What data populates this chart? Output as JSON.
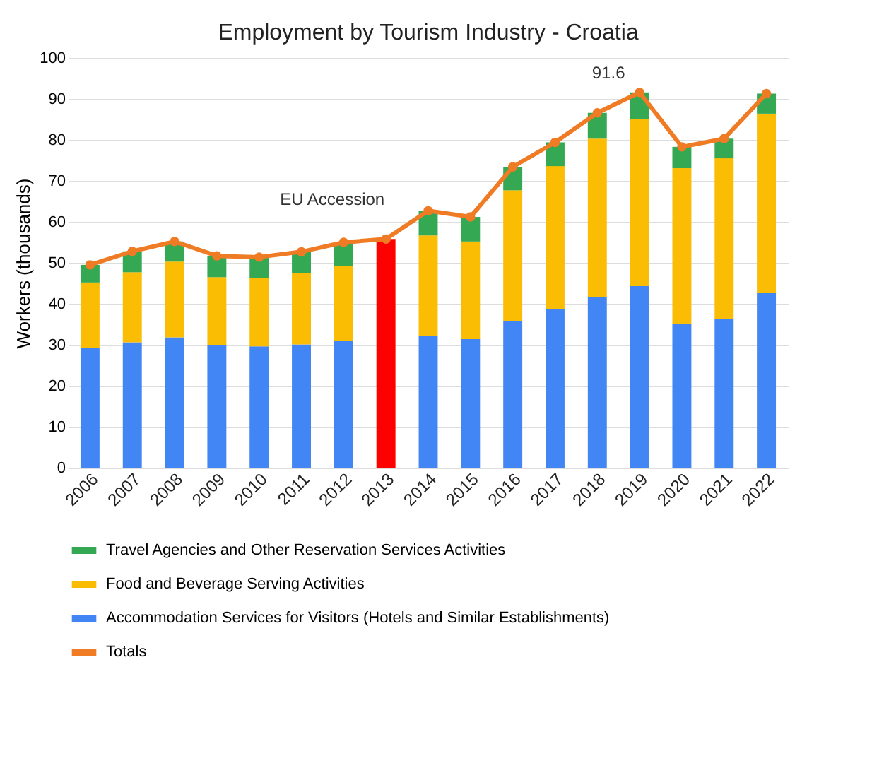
{
  "chart_data": {
    "type": "bar",
    "title": "Employment by Tourism Industry - Croatia",
    "ylabel": "Workers (thousands)",
    "categories": [
      "2006",
      "2007",
      "2008",
      "2009",
      "2010",
      "2011",
      "2012",
      "2013",
      "2014",
      "2015",
      "2016",
      "2017",
      "2018",
      "2019",
      "2020",
      "2021",
      "2022"
    ],
    "stacked": true,
    "series": [
      {
        "name": "Accommodation Services for Visitors (Hotels and Similar Establishments)",
        "color": "#4285f4",
        "values": [
          29.2,
          30.6,
          31.8,
          30.0,
          29.6,
          30.1,
          30.9,
          null,
          32.1,
          31.4,
          35.8,
          38.8,
          41.7,
          44.3,
          35.0,
          36.3,
          42.6
        ]
      },
      {
        "name": "Food and Beverage Serving Activities",
        "color": "#fbbc04",
        "values": [
          16.0,
          17.1,
          18.5,
          16.5,
          16.7,
          17.4,
          18.4,
          null,
          24.6,
          23.8,
          31.9,
          34.8,
          38.6,
          40.7,
          38.1,
          39.2,
          43.8
        ]
      },
      {
        "name": "Travel Agencies and Other Reservation Services Activities",
        "color": "#34a853",
        "values": [
          4.3,
          5.1,
          4.9,
          5.2,
          5.1,
          5.2,
          5.7,
          null,
          6.0,
          6.0,
          5.7,
          5.8,
          6.3,
          6.6,
          5.2,
          4.8,
          4.9
        ]
      },
      {
        "color": "#ff0000",
        "values": [
          null,
          null,
          null,
          null,
          null,
          null,
          null,
          55.8,
          null,
          null,
          null,
          null,
          null,
          null,
          null,
          null,
          null
        ]
      },
      {
        "name": "Totals",
        "type": "line",
        "color": "#f07b25",
        "marker": "circle",
        "values": [
          49.5,
          52.8,
          55.2,
          51.7,
          51.4,
          52.7,
          55.0,
          55.8,
          62.7,
          61.2,
          73.4,
          79.4,
          86.6,
          91.6,
          78.3,
          80.3,
          91.3
        ]
      }
    ],
    "ylim": [
      0,
      100
    ],
    "yticks": [
      0,
      10,
      20,
      30,
      40,
      50,
      60,
      70,
      80,
      90,
      100
    ],
    "grid": "y",
    "legend": "bottom",
    "annotations": [
      {
        "text": "EU Accession",
        "x": "2013",
        "y": 55.8
      },
      {
        "text": "91.6",
        "x": "2019",
        "y": 91.6
      }
    ]
  }
}
